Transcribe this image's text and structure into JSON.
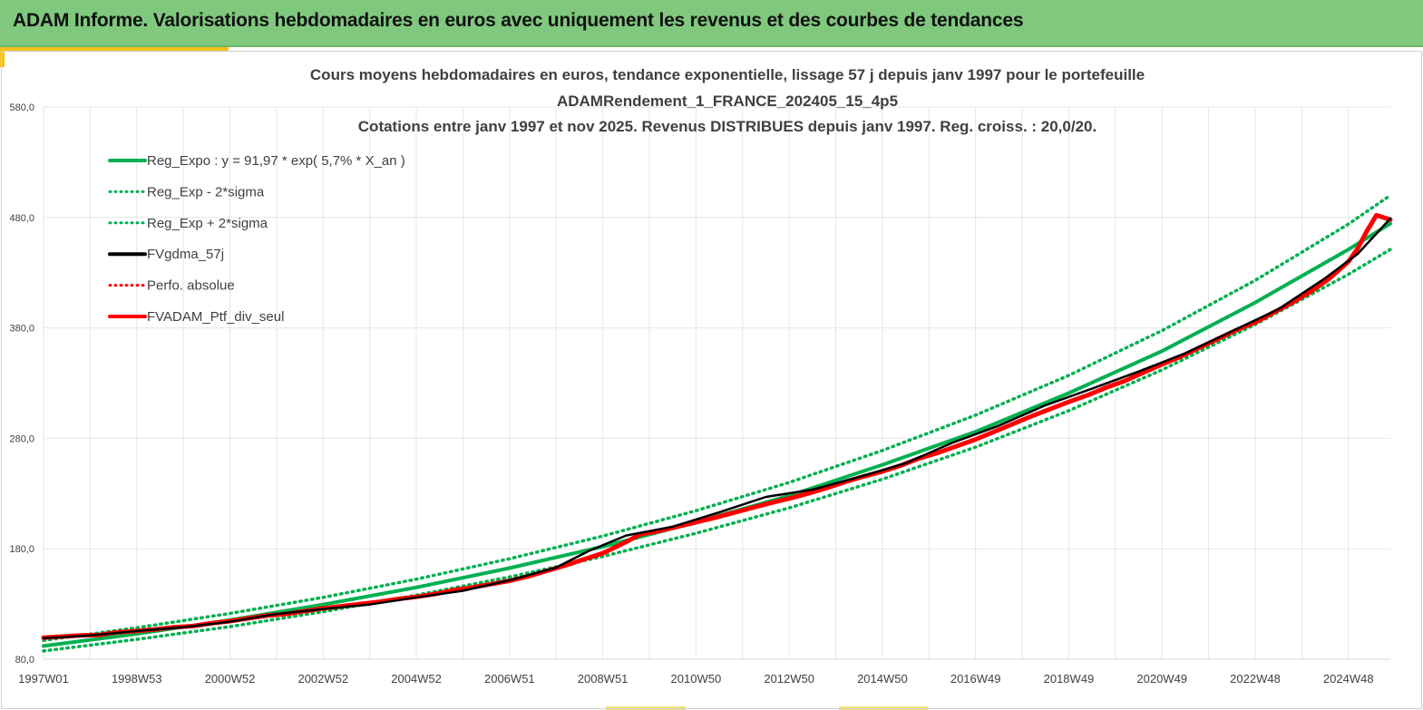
{
  "header": {
    "title": "ADAM Informe. Valorisations hebdomadaires en euros avec uniquement les revenus et des courbes de tendances"
  },
  "colors": {
    "header_bg": "#7fc87d",
    "accent": "#f2c21b",
    "trend": "#00b050",
    "smooth": "#000000",
    "portfolio": "#ff0000"
  },
  "chart_data": {
    "type": "line",
    "title_lines": [
      "Cours moyens hebdomadaires  en euros, tendance exponentielle, lissage 57 j depuis janv 1997 pour le portefeuille",
      "ADAMRendement_1_FRANCE_202405_15_4p5",
      "Cotations  entre janv 1997 et nov  2025. Revenus DISTRIBUES depuis janv 1997. Reg. croiss. : 20,0/20."
    ],
    "ylim": [
      80,
      580
    ],
    "x_range": [
      1997.0,
      2025.9
    ],
    "y_ticks": [
      "80,0",
      "180,0",
      "280,0",
      "380,0",
      "480,0",
      "580,0"
    ],
    "x_ticks": [
      {
        "label": "1997W01",
        "x": 1997.0
      },
      {
        "label": "1998W53",
        "x": 1999.0
      },
      {
        "label": "2000W52",
        "x": 2001.0
      },
      {
        "label": "2002W52",
        "x": 2003.0
      },
      {
        "label": "2004W52",
        "x": 2005.0
      },
      {
        "label": "2006W51",
        "x": 2007.0
      },
      {
        "label": "2008W51",
        "x": 2009.0
      },
      {
        "label": "2010W50",
        "x": 2011.0
      },
      {
        "label": "2012W50",
        "x": 2013.0
      },
      {
        "label": "2014W50",
        "x": 2015.0
      },
      {
        "label": "2016W49",
        "x": 2017.0
      },
      {
        "label": "2018W49",
        "x": 2019.0
      },
      {
        "label": "2020W49",
        "x": 2021.0
      },
      {
        "label": "2022W48",
        "x": 2023.0
      },
      {
        "label": "2024W48",
        "x": 2025.0
      }
    ],
    "grid": true,
    "legend_position": "top-left",
    "legend": [
      {
        "label": "Reg_Expo : y = 91,97 * exp( 5,7% *  X_an )",
        "color": "#00b050",
        "style": "solid"
      },
      {
        "label": "Reg_Exp - 2*sigma",
        "color": "#00b050",
        "style": "dotted"
      },
      {
        "label": "Reg_Exp + 2*sigma",
        "color": "#00b050",
        "style": "dotted"
      },
      {
        "label": "FVgdma_57j",
        "color": "#000000",
        "style": "solid"
      },
      {
        "label": "Perfo. absolue",
        "color": "#ff0000",
        "style": "dotted"
      },
      {
        "label": "FVADAM_Ptf_div_seul",
        "color": "#ff0000",
        "style": "solid"
      }
    ],
    "series": [
      {
        "name": "Reg_Expo : y = 91,97 * exp( 5,7% *  X_an )",
        "x": [
          1997.0,
          1999.0,
          2001.0,
          2003.0,
          2005.0,
          2007.0,
          2009.0,
          2011.0,
          2013.0,
          2015.0,
          2017.0,
          2019.0,
          2021.0,
          2023.0,
          2025.0,
          2025.9
        ],
        "y": [
          92.0,
          103.0,
          115.5,
          129.5,
          145.0,
          162.5,
          182.0,
          204.0,
          228.0,
          256.0,
          286.0,
          321.0,
          359.0,
          403.0,
          451.0,
          474.5
        ]
      },
      {
        "name": "Reg_Exp - 2*sigma",
        "x": [
          1997.0,
          1999.0,
          2001.0,
          2003.0,
          2005.0,
          2007.0,
          2009.0,
          2011.0,
          2013.0,
          2015.0,
          2017.0,
          2019.0,
          2021.0,
          2023.0,
          2025.0,
          2025.9
        ],
        "y": [
          87.5,
          98.0,
          109.5,
          123.0,
          138.0,
          154.5,
          173.0,
          194.0,
          217.0,
          243.0,
          272.0,
          305.0,
          342.0,
          383.0,
          428.5,
          451.0
        ]
      },
      {
        "name": "Reg_Exp + 2*sigma",
        "x": [
          1997.0,
          1999.0,
          2001.0,
          2003.0,
          2005.0,
          2007.0,
          2009.0,
          2011.0,
          2013.0,
          2015.0,
          2017.0,
          2019.0,
          2021.0,
          2023.0,
          2025.0,
          2025.9
        ],
        "y": [
          97.0,
          108.5,
          121.5,
          136.0,
          152.5,
          171.0,
          191.5,
          214.5,
          240.0,
          269.0,
          301.0,
          337.0,
          377.5,
          423.0,
          474.0,
          500.0
        ]
      },
      {
        "name": "FVgdma_57j",
        "x": [
          1997.0,
          1998.0,
          1999.0,
          2000.0,
          2001.0,
          2002.0,
          2003.0,
          2004.0,
          2005.0,
          2006.0,
          2007.0,
          2008.0,
          2008.7,
          2009.5,
          2010.5,
          2011.5,
          2012.5,
          2013.5,
          2014.5,
          2015.5,
          2016.5,
          2017.5,
          2018.5,
          2019.5,
          2020.5,
          2021.5,
          2022.5,
          2023.5,
          2024.5,
          2025.2,
          2025.9
        ],
        "y": [
          99.0,
          101.5,
          105.5,
          109.0,
          114.0,
          121.0,
          125.5,
          129.5,
          136.0,
          142.0,
          151.5,
          163.0,
          178.0,
          192.0,
          200.0,
          213.0,
          227.0,
          233.5,
          245.0,
          257.5,
          276.0,
          291.5,
          310.0,
          325.0,
          340.5,
          357.0,
          377.0,
          397.0,
          425.0,
          447.0,
          479.0
        ]
      },
      {
        "name": "FVADAM_Ptf_div_seul",
        "x": [
          1997.0,
          1997.4,
          1997.8,
          1998.2,
          1998.6,
          1999.0,
          1999.4,
          1999.8,
          2000.2,
          2000.6,
          2001.0,
          2001.4,
          2001.8,
          2002.2,
          2002.6,
          2003.0,
          2003.4,
          2003.8,
          2004.2,
          2004.6,
          2005.0,
          2005.4,
          2005.8,
          2006.2,
          2006.6,
          2007.0,
          2007.4,
          2007.8,
          2008.2,
          2008.6,
          2009.0,
          2009.4,
          2009.8,
          2010.2,
          2010.6,
          2011.0,
          2011.4,
          2011.8,
          2012.2,
          2012.6,
          2013.0,
          2013.4,
          2013.8,
          2014.2,
          2014.6,
          2015.0,
          2015.4,
          2015.8,
          2016.2,
          2016.6,
          2017.0,
          2017.4,
          2017.8,
          2018.2,
          2018.6,
          2019.0,
          2019.4,
          2019.8,
          2020.2,
          2020.6,
          2021.0,
          2021.4,
          2021.8,
          2022.2,
          2022.6,
          2023.0,
          2023.4,
          2023.8,
          2024.2,
          2024.6,
          2025.0,
          2025.2,
          2025.4,
          2025.6,
          2025.9
        ],
        "y": [
          99.5,
          100.5,
          101.5,
          102.0,
          104.5,
          105.5,
          107.0,
          109.0,
          110.0,
          112.5,
          114.5,
          117.0,
          119.5,
          121.0,
          123.5,
          126.0,
          128.0,
          130.0,
          132.0,
          134.5,
          136.5,
          139.0,
          142.5,
          145.0,
          148.0,
          151.0,
          155.0,
          160.0,
          165.0,
          170.5,
          176.0,
          184.0,
          193.0,
          196.0,
          200.0,
          204.0,
          208.0,
          212.5,
          217.0,
          221.5,
          225.5,
          230.0,
          235.0,
          240.5,
          245.5,
          250.0,
          255.5,
          262.0,
          267.0,
          273.0,
          279.0,
          286.0,
          293.0,
          300.0,
          306.5,
          313.0,
          319.0,
          326.0,
          332.0,
          339.5,
          347.0,
          354.0,
          362.0,
          370.0,
          378.0,
          385.0,
          394.0,
          403.0,
          413.0,
          425.0,
          440.0,
          452.0,
          468.0,
          482.0,
          478.0
        ]
      }
    ]
  }
}
